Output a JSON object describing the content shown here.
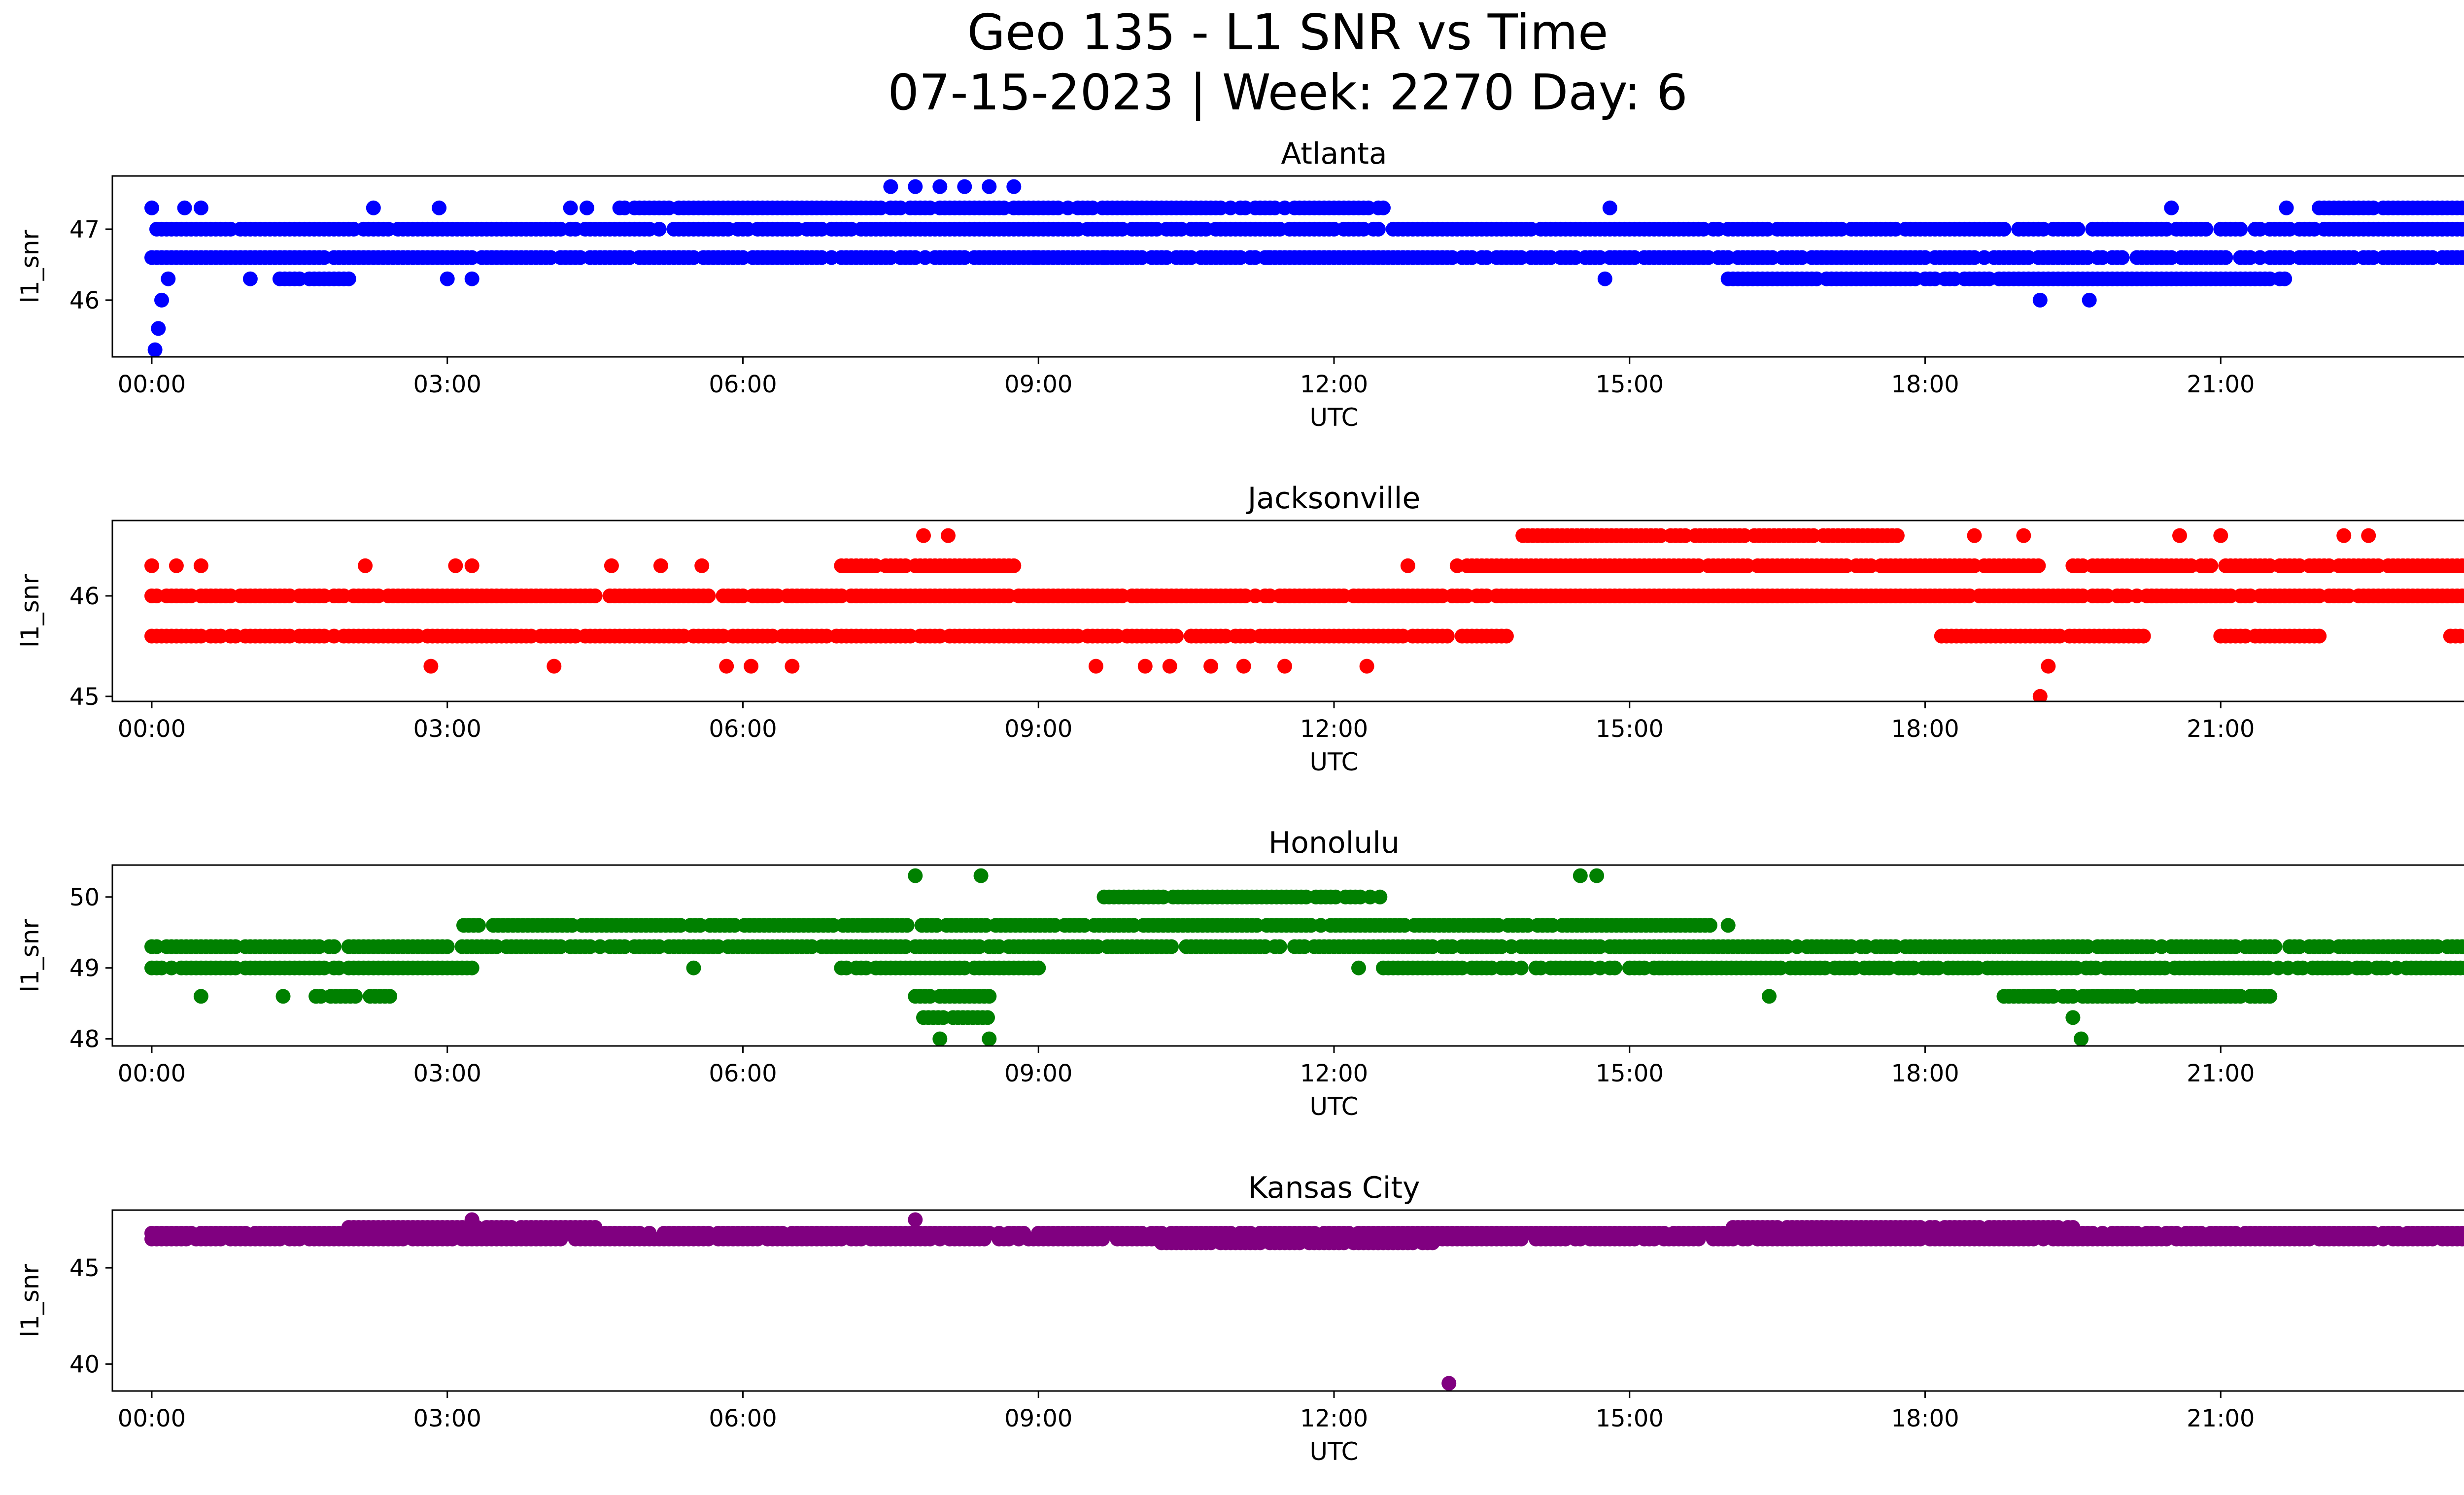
{
  "figure": {
    "title_line1": "Geo 135 - L1 SNR vs Time",
    "title_line2": "07-15-2023 | Week: 2270 Day: 6"
  },
  "chart_data": [
    {
      "type": "scatter",
      "title": "Atlanta",
      "xlabel": "UTC",
      "ylabel": "l1_snr",
      "color": "#0000ff",
      "xlim": [
        "-00:24",
        "24:24"
      ],
      "ylim": [
        45.2,
        47.75
      ],
      "x_ticks": [
        "00:00",
        "03:00",
        "06:00",
        "09:00",
        "12:00",
        "15:00",
        "18:00",
        "21:00",
        "00:00"
      ],
      "y_ticks": [
        46,
        47
      ],
      "series": [
        {
          "values_approx": [
            {
              "x": "00:00",
              "y": 47.3
            },
            {
              "x": "00:02",
              "y": 45.3
            },
            {
              "x": "00:04",
              "y": 45.6
            },
            {
              "x": "00:06",
              "y": 46.0
            },
            {
              "x": "00:10",
              "y": 46.3
            },
            {
              "x": "00:20",
              "y": 47.3
            },
            {
              "x": "00:30",
              "y": 47.3
            },
            {
              "x": "01:00",
              "y": 46.3
            },
            {
              "x": "02:15",
              "y": 47.3
            },
            {
              "x": "02:55",
              "y": 47.3
            },
            {
              "x": "03:00",
              "y": 46.3
            },
            {
              "x": "03:15",
              "y": 46.3
            },
            {
              "x": "04:15",
              "y": 47.3
            },
            {
              "x": "04:25",
              "y": 47.3
            },
            {
              "x": "07:30",
              "y": 47.6
            },
            {
              "x": "07:45",
              "y": 47.6
            },
            {
              "x": "08:00",
              "y": 47.6
            },
            {
              "x": "08:15",
              "y": 47.6
            },
            {
              "x": "08:30",
              "y": 47.6
            },
            {
              "x": "08:45",
              "y": 47.6
            },
            {
              "x": "08:58",
              "y": 46.6
            },
            {
              "x": "09:40",
              "y": 46.6
            },
            {
              "x": "11:20",
              "y": 46.6
            },
            {
              "x": "14:45",
              "y": 46.3
            },
            {
              "x": "14:48",
              "y": 47.3
            },
            {
              "x": "19:10",
              "y": 46.0
            },
            {
              "x": "19:40",
              "y": 46.0
            },
            {
              "x": "20:30",
              "y": 47.3
            },
            {
              "x": "21:40",
              "y": 47.3
            }
          ],
          "bands": [
            {
              "y": 47.0,
              "from": "00:00",
              "to": "24:00"
            },
            {
              "y": 46.6,
              "from": "00:00",
              "to": "24:00"
            },
            {
              "y": 47.3,
              "from": "04:45",
              "to": "12:30"
            },
            {
              "y": 47.3,
              "from": "22:00",
              "to": "24:00"
            },
            {
              "y": 46.3,
              "from": "01:15",
              "to": "02:00"
            },
            {
              "y": 46.3,
              "from": "16:00",
              "to": "21:45"
            }
          ]
        }
      ]
    },
    {
      "type": "scatter",
      "title": "Jacksonville",
      "xlabel": "UTC",
      "ylabel": "l1_snr",
      "color": "#ff0000",
      "xlim": [
        "-00:24",
        "24:24"
      ],
      "ylim": [
        44.95,
        46.75
      ],
      "x_ticks": [
        "00:00",
        "03:00",
        "06:00",
        "09:00",
        "12:00",
        "15:00",
        "18:00",
        "21:00",
        "00:00"
      ],
      "y_ticks": [
        45,
        46
      ],
      "series": [
        {
          "values_approx": [
            {
              "x": "00:00",
              "y": 46.3
            },
            {
              "x": "00:15",
              "y": 46.3
            },
            {
              "x": "00:30",
              "y": 46.3
            },
            {
              "x": "02:10",
              "y": 46.3
            },
            {
              "x": "02:50",
              "y": 45.3
            },
            {
              "x": "03:05",
              "y": 46.3
            },
            {
              "x": "03:15",
              "y": 46.3
            },
            {
              "x": "04:05",
              "y": 45.3
            },
            {
              "x": "04:40",
              "y": 46.3
            },
            {
              "x": "05:10",
              "y": 46.3
            },
            {
              "x": "05:35",
              "y": 46.3
            },
            {
              "x": "05:50",
              "y": 45.3
            },
            {
              "x": "06:05",
              "y": 45.3
            },
            {
              "x": "06:30",
              "y": 45.3
            },
            {
              "x": "07:50",
              "y": 46.6
            },
            {
              "x": "08:05",
              "y": 46.6
            },
            {
              "x": "09:35",
              "y": 45.3
            },
            {
              "x": "10:05",
              "y": 45.3
            },
            {
              "x": "10:20",
              "y": 45.3
            },
            {
              "x": "10:45",
              "y": 45.3
            },
            {
              "x": "11:05",
              "y": 45.3
            },
            {
              "x": "11:30",
              "y": 45.3
            },
            {
              "x": "12:20",
              "y": 45.3
            },
            {
              "x": "12:45",
              "y": 46.3
            },
            {
              "x": "18:30",
              "y": 46.6
            },
            {
              "x": "19:00",
              "y": 46.6
            },
            {
              "x": "19:10",
              "y": 45.0
            },
            {
              "x": "19:15",
              "y": 45.3
            },
            {
              "x": "20:35",
              "y": 46.6
            },
            {
              "x": "21:00",
              "y": 46.6
            },
            {
              "x": "22:15",
              "y": 46.6
            },
            {
              "x": "22:30",
              "y": 46.6
            }
          ],
          "bands": [
            {
              "y": 46.0,
              "from": "00:00",
              "to": "24:00"
            },
            {
              "y": 45.6,
              "from": "00:00",
              "to": "13:45"
            },
            {
              "y": 46.3,
              "from": "07:00",
              "to": "08:45"
            },
            {
              "y": 46.3,
              "from": "13:15",
              "to": "19:10"
            },
            {
              "y": 46.3,
              "from": "19:30",
              "to": "24:00"
            },
            {
              "y": 46.6,
              "from": "13:55",
              "to": "17:45"
            },
            {
              "y": 45.6,
              "from": "18:10",
              "to": "20:15"
            },
            {
              "y": 45.6,
              "from": "21:00",
              "to": "22:00"
            },
            {
              "y": 45.6,
              "from": "23:20",
              "to": "24:00"
            }
          ]
        }
      ]
    },
    {
      "type": "scatter",
      "title": "Honolulu",
      "xlabel": "UTC",
      "ylabel": "l1_snr",
      "color": "#008000",
      "xlim": [
        "-00:24",
        "24:24"
      ],
      "ylim": [
        47.9,
        50.45
      ],
      "x_ticks": [
        "00:00",
        "03:00",
        "06:00",
        "09:00",
        "12:00",
        "15:00",
        "18:00",
        "21:00",
        "00:00"
      ],
      "y_ticks": [
        48,
        49,
        50
      ],
      "series": [
        {
          "values_approx": [
            {
              "x": "00:30",
              "y": 48.6
            },
            {
              "x": "01:20",
              "y": 48.6
            },
            {
              "x": "01:40",
              "y": 48.6
            },
            {
              "x": "05:30",
              "y": 49.0
            },
            {
              "x": "07:15",
              "y": 49.6
            },
            {
              "x": "07:45",
              "y": 50.3
            },
            {
              "x": "08:25",
              "y": 50.3
            },
            {
              "x": "08:00",
              "y": 48.0
            },
            {
              "x": "08:30",
              "y": 48.0
            },
            {
              "x": "09:00",
              "y": 49.0
            },
            {
              "x": "12:15",
              "y": 49.0
            },
            {
              "x": "14:30",
              "y": 50.3
            },
            {
              "x": "14:40",
              "y": 50.3
            },
            {
              "x": "16:00",
              "y": 49.6
            },
            {
              "x": "16:25",
              "y": 48.6
            },
            {
              "x": "19:30",
              "y": 48.3
            },
            {
              "x": "19:35",
              "y": 48.0
            },
            {
              "x": "20:00",
              "y": 49.3
            },
            {
              "x": "20:30",
              "y": 49.3
            },
            {
              "x": "24:00",
              "y": 48.6
            }
          ],
          "bands": [
            {
              "y": 49.3,
              "from": "00:00",
              "to": "24:00"
            },
            {
              "y": 49.0,
              "from": "00:00",
              "to": "03:15"
            },
            {
              "y": 49.0,
              "from": "07:00",
              "to": "09:00"
            },
            {
              "y": 49.0,
              "from": "12:30",
              "to": "15:20"
            },
            {
              "y": 49.0,
              "from": "15:20",
              "to": "24:00"
            },
            {
              "y": 49.6,
              "from": "03:10",
              "to": "15:50"
            },
            {
              "y": 48.6,
              "from": "01:40",
              "to": "02:25"
            },
            {
              "y": 48.6,
              "from": "07:45",
              "to": "08:30"
            },
            {
              "y": 48.6,
              "from": "18:45",
              "to": "21:30"
            },
            {
              "y": 50.0,
              "from": "09:40",
              "to": "12:30"
            },
            {
              "y": 48.3,
              "from": "07:50",
              "to": "08:30"
            }
          ]
        }
      ]
    },
    {
      "type": "scatter",
      "title": "Kansas City",
      "xlabel": "UTC",
      "ylabel": "l1_snr",
      "color": "#800080",
      "xlim": [
        "-00:24",
        "24:24"
      ],
      "ylim": [
        38.6,
        48.0
      ],
      "x_ticks": [
        "00:00",
        "03:00",
        "06:00",
        "09:00",
        "12:00",
        "15:00",
        "18:00",
        "21:00",
        "00:00"
      ],
      "y_ticks": [
        40,
        45
      ],
      "series": [
        {
          "values_approx": [
            {
              "x": "13:10",
              "y": 39.0
            },
            {
              "x": "03:15",
              "y": 47.5
            },
            {
              "x": "07:45",
              "y": 47.5
            }
          ],
          "bands": [
            {
              "y": 46.8,
              "from": "00:00",
              "to": "24:00"
            },
            {
              "y": 47.1,
              "from": "02:00",
              "to": "04:30"
            },
            {
              "y": 47.1,
              "from": "16:00",
              "to": "19:30"
            },
            {
              "y": 46.3,
              "from": "10:15",
              "to": "13:00"
            },
            {
              "y": 46.5,
              "from": "00:00",
              "to": "24:00"
            }
          ]
        }
      ]
    }
  ]
}
